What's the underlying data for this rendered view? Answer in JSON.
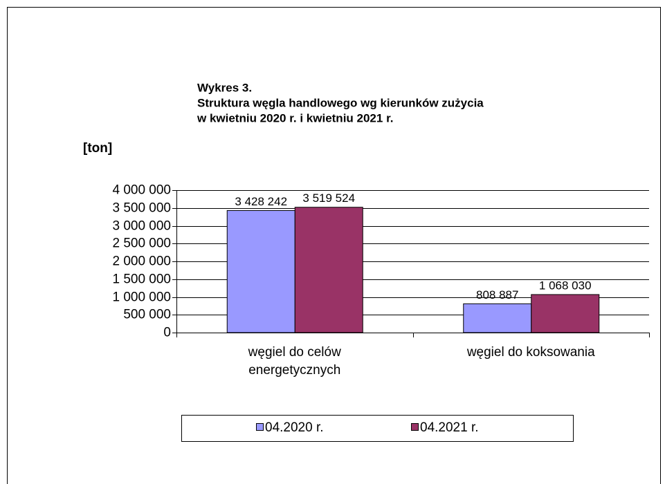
{
  "chart_data": {
    "type": "bar",
    "title": "Wykres 3.",
    "subtitle": [
      "Struktura węgla handlowego wg kierunków zużycia",
      "w kwietniu 2020 r. i kwietniu 2021 r."
    ],
    "y_label": "[ton]",
    "categories": [
      "węgiel do celów energetycznych",
      "węgiel do koksowania"
    ],
    "series": [
      {
        "name": "04.2020 r.",
        "color": "#9999ff",
        "values": [
          3428242,
          808887
        ],
        "value_labels": [
          "3 428 242",
          "808 887"
        ]
      },
      {
        "name": "04.2021 r.",
        "color": "#993366",
        "values": [
          3519524,
          1068030
        ],
        "value_labels": [
          "3 519 524",
          "1 068 030"
        ]
      }
    ],
    "ylim": [
      0,
      4000000
    ],
    "yticks": [
      0,
      {
        "value": 500000,
        "label": "500 000"
      },
      {
        "value": 1000000,
        "label": "1 000 000"
      },
      {
        "value": 1500000,
        "label": "1 500 000"
      },
      {
        "value": 2000000,
        "label": "2 000 000"
      },
      {
        "value": 2500000,
        "label": "2 500 000"
      },
      {
        "value": 3000000,
        "label": "3 000 000"
      },
      {
        "value": 3500000,
        "label": "3 500 000"
      },
      {
        "value": 4000000,
        "label": "4 000 000"
      }
    ],
    "grid": true,
    "legend": "bottom"
  }
}
